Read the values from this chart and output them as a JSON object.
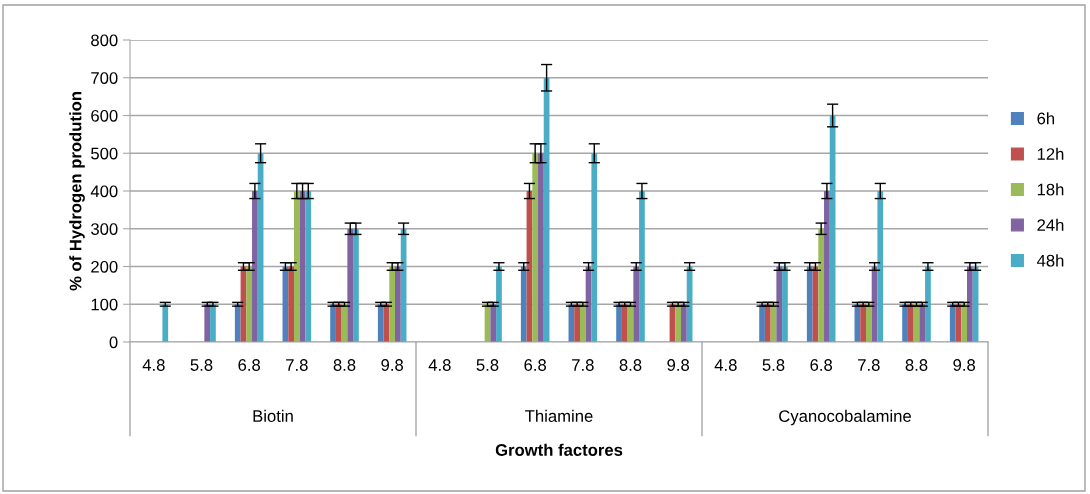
{
  "chart_data": {
    "type": "bar",
    "xlabel": "Growth factores",
    "ylabel": "% of Hydrogen prodution",
    "categories": [
      "4.8",
      "5.8",
      "6.8",
      "7.8",
      "8.8",
      "9.8",
      "4.8",
      "5.8",
      "6.8",
      "7.8",
      "8.8",
      "9.8",
      "4.8",
      "5.8",
      "6.8",
      "7.8",
      "8.8",
      "9.8"
    ],
    "annotations": [
      "Biotin",
      "Thiamine",
      "Cyanocobalamine"
    ],
    "series": [
      {
        "name": "6h",
        "color": "#4f81bd",
        "values": [
          null,
          null,
          100,
          200,
          100,
          100,
          null,
          null,
          200,
          100,
          100,
          null,
          null,
          100,
          200,
          100,
          100,
          100
        ],
        "errors": [
          null,
          null,
          5,
          10,
          5,
          5,
          null,
          null,
          10,
          5,
          5,
          null,
          null,
          5,
          10,
          5,
          5,
          5
        ]
      },
      {
        "name": "12h",
        "color": "#c0504d",
        "values": [
          null,
          null,
          200,
          200,
          100,
          100,
          null,
          null,
          400,
          100,
          100,
          100,
          null,
          100,
          200,
          100,
          100,
          100
        ],
        "errors": [
          null,
          null,
          10,
          10,
          5,
          5,
          null,
          null,
          20,
          5,
          5,
          5,
          null,
          5,
          10,
          5,
          5,
          5
        ]
      },
      {
        "name": "18h",
        "color": "#9bbb59",
        "values": [
          null,
          null,
          200,
          400,
          100,
          200,
          null,
          100,
          500,
          100,
          100,
          100,
          null,
          100,
          300,
          100,
          100,
          100
        ],
        "errors": [
          null,
          null,
          10,
          20,
          5,
          10,
          null,
          5,
          25,
          5,
          5,
          5,
          null,
          5,
          15,
          5,
          5,
          5
        ]
      },
      {
        "name": "24h",
        "color": "#8064a2",
        "values": [
          null,
          100,
          400,
          400,
          300,
          200,
          null,
          100,
          500,
          200,
          200,
          100,
          null,
          200,
          400,
          200,
          100,
          200
        ],
        "errors": [
          null,
          5,
          20,
          20,
          15,
          10,
          null,
          5,
          25,
          10,
          10,
          5,
          null,
          10,
          20,
          10,
          5,
          10
        ]
      },
      {
        "name": "48h",
        "color": "#4bacc6",
        "values": [
          100,
          100,
          500,
          400,
          300,
          300,
          null,
          200,
          700,
          500,
          400,
          200,
          null,
          200,
          600,
          400,
          200,
          200
        ],
        "errors": [
          5,
          5,
          25,
          20,
          15,
          15,
          null,
          10,
          35,
          25,
          20,
          10,
          null,
          10,
          30,
          20,
          10,
          10
        ]
      }
    ],
    "ylim": [
      0,
      800
    ],
    "yticks": [
      0,
      100,
      200,
      300,
      400,
      500,
      600,
      700,
      800
    ],
    "grid": "y",
    "legend": "right"
  }
}
